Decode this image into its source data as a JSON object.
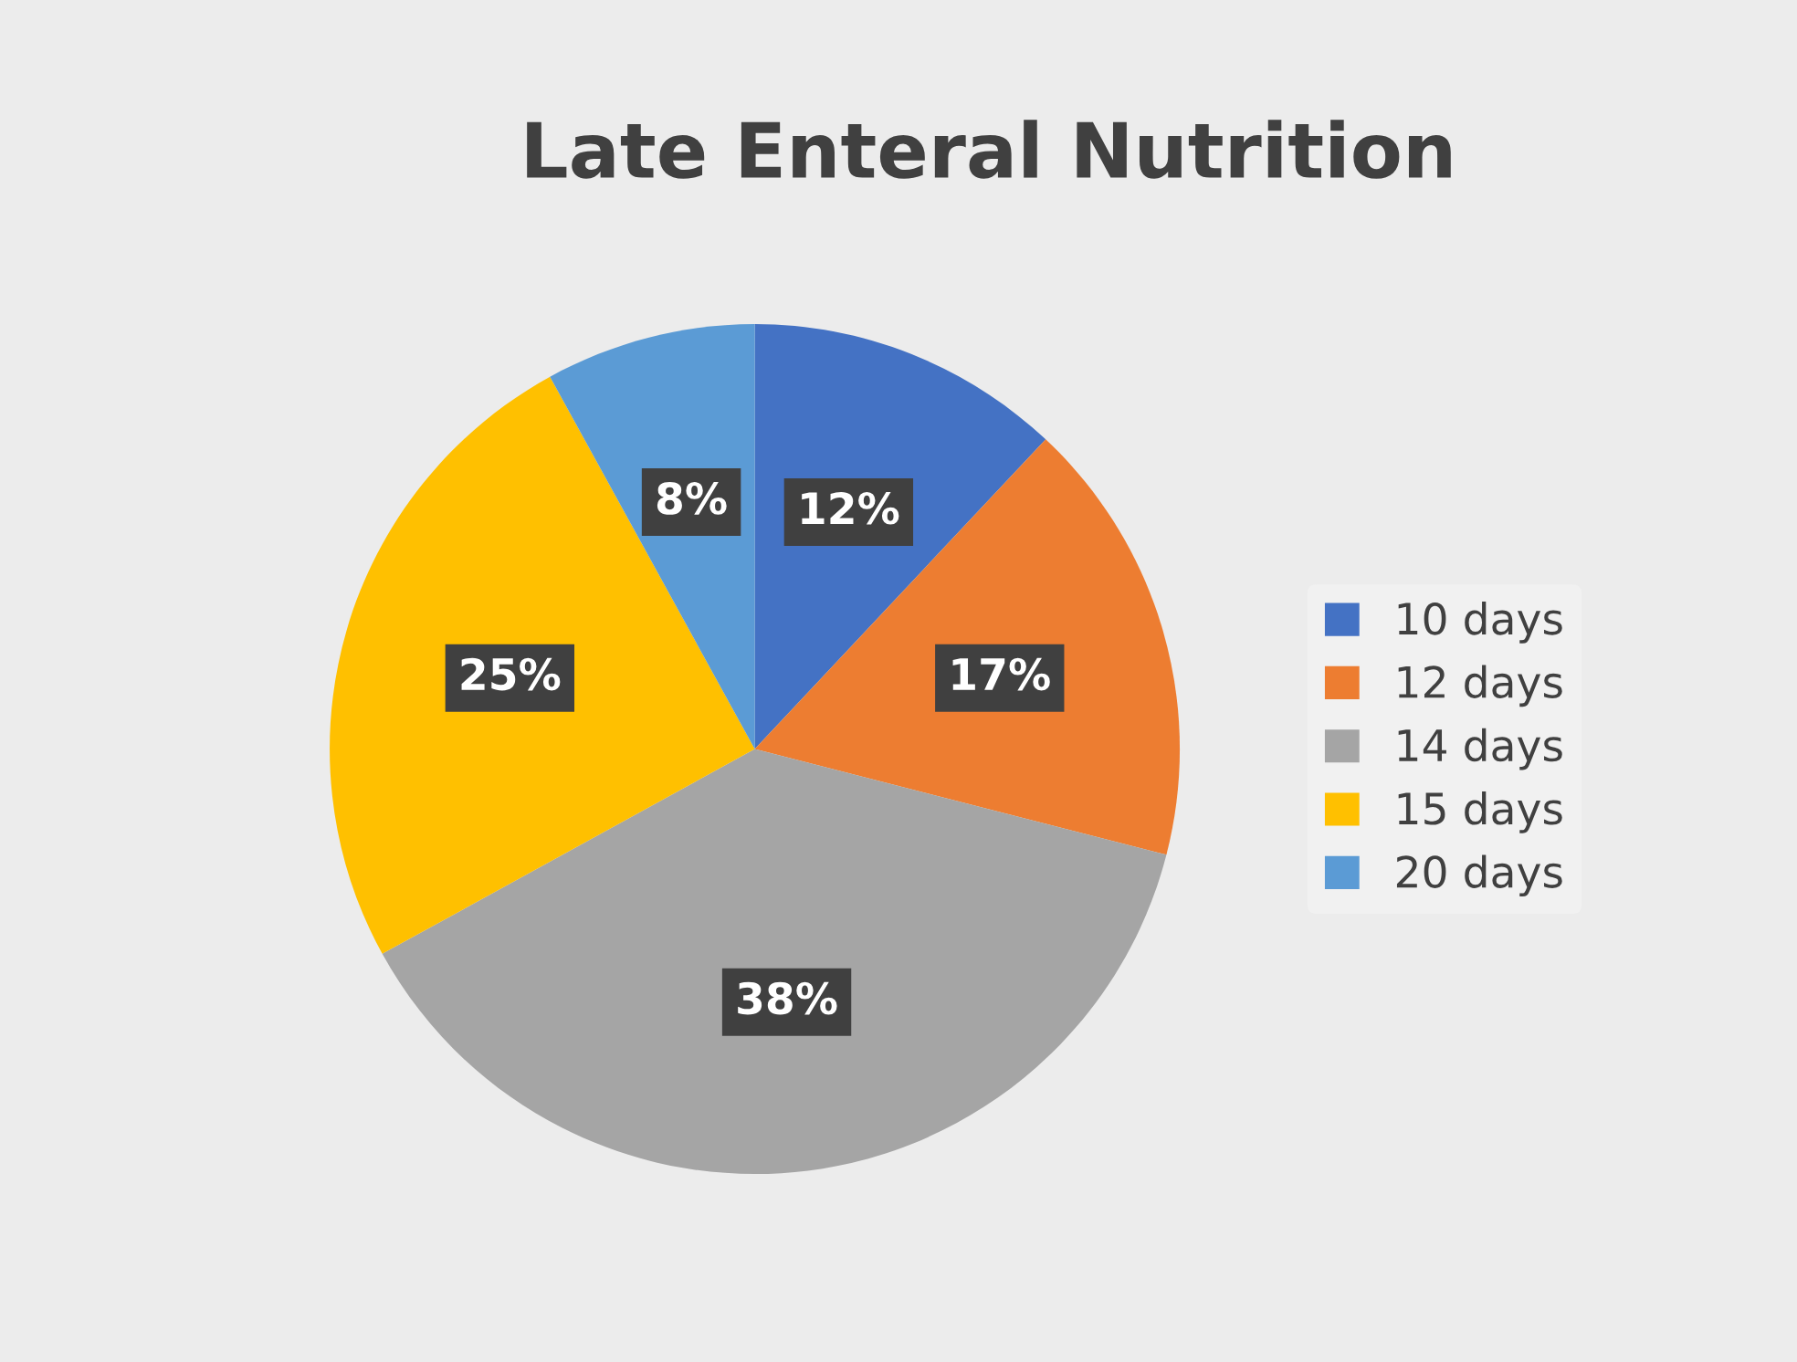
{
  "chart_data": {
    "type": "pie",
    "title": "Late Enteral Nutrition",
    "categories": [
      "10 days",
      "12 days",
      "14 days",
      "15 days",
      "20 days"
    ],
    "values": [
      12,
      17,
      38,
      25,
      8
    ],
    "colors": [
      "#4472c4",
      "#ed7d31",
      "#a5a5a5",
      "#ffc000",
      "#5b9bd5"
    ],
    "value_labels": [
      "12%",
      "17%",
      "38%",
      "25%",
      "8%"
    ],
    "legend": "right"
  }
}
